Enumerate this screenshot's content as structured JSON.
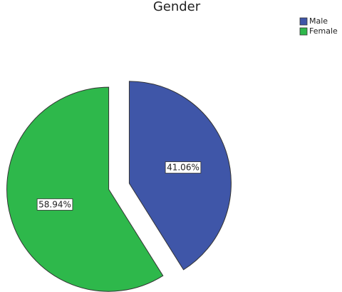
{
  "chart_data": {
    "type": "pie",
    "title": "Gender",
    "categories": [
      "Male",
      "Female"
    ],
    "values": [
      41.06,
      58.94
    ],
    "value_labels": [
      "41.06%",
      "58.94%"
    ],
    "colors": [
      "#3f56a8",
      "#2eb84b"
    ],
    "legend": "top-right",
    "exploded": true
  }
}
